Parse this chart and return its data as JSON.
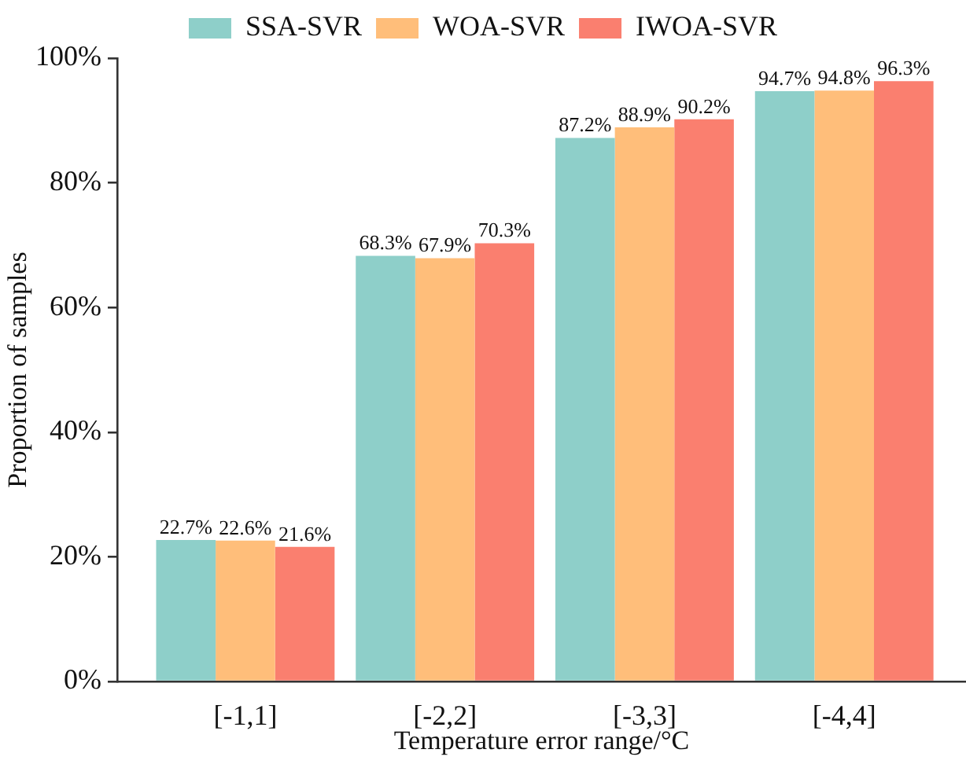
{
  "chart_data": {
    "type": "bar",
    "xlabel": "Temperature error range/°C",
    "ylabel": "Proportion of samples",
    "categories": [
      "[-1,1]",
      "[-2,2]",
      "[-3,3]",
      "[-4,4]"
    ],
    "series": [
      {
        "name": "SSA-SVR",
        "color": "#8ecfc9",
        "values": [
          22.7,
          68.3,
          87.2,
          94.7
        ],
        "value_labels": [
          "22.7%",
          "68.3%",
          "87.2%",
          "94.7%"
        ]
      },
      {
        "name": "WOA-SVR",
        "color": "#ffbe7a",
        "values": [
          22.6,
          67.9,
          88.9,
          94.8
        ],
        "value_labels": [
          "22.6%",
          "67.9%",
          "88.9%",
          "94.8%"
        ]
      },
      {
        "name": "IWOA-SVR",
        "color": "#fa7f6f",
        "values": [
          21.6,
          70.3,
          90.2,
          96.3
        ],
        "value_labels": [
          "21.6%",
          "70.3%",
          "90.2%",
          "96.3%"
        ]
      }
    ],
    "ylim": [
      0,
      100
    ],
    "yticks": [
      {
        "value": 0,
        "label": "0%"
      },
      {
        "value": 20,
        "label": "20%"
      },
      {
        "value": 40,
        "label": "40%"
      },
      {
        "value": 60,
        "label": "60%"
      },
      {
        "value": 80,
        "label": "80%"
      },
      {
        "value": 100,
        "label": "100%"
      }
    ],
    "legend": "top"
  }
}
